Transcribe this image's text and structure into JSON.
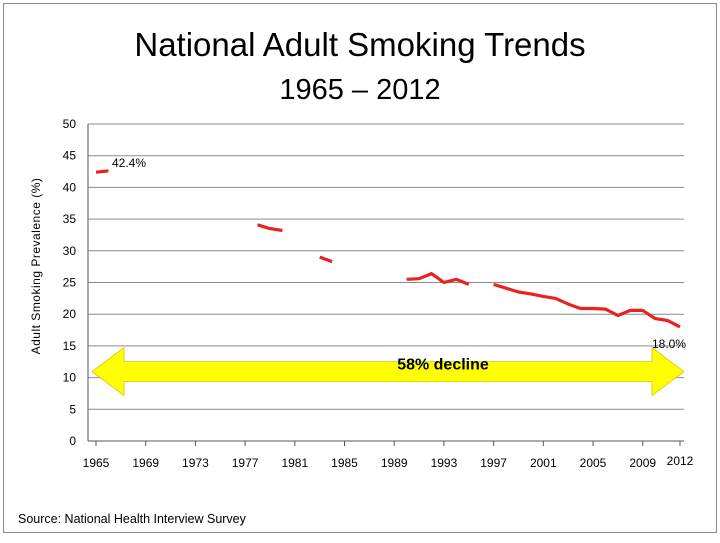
{
  "slide": {
    "title": "National Adult Smoking Trends",
    "subtitle": "1965 – 2012",
    "source": "Source: National Health Interview Survey"
  },
  "chart_data": {
    "type": "line",
    "title": "National Adult Smoking Trends",
    "subtitle": "1965 – 2012",
    "xlabel": "",
    "ylabel": "Adult Smoking Prevalence (%)",
    "ylim": [
      0,
      50
    ],
    "yticks": [
      0,
      5,
      10,
      15,
      20,
      25,
      30,
      35,
      40,
      45,
      50
    ],
    "xlim": [
      1965,
      2012
    ],
    "xticks": [
      "1965",
      "1969",
      "1973",
      "1977",
      "1981",
      "1985",
      "1989",
      "1993",
      "1997",
      "2001",
      "2005",
      "2009",
      "2012"
    ],
    "grid": "horizontal",
    "line_color": "#e8221f",
    "segments": [
      [
        [
          1965,
          42.4
        ],
        [
          1966,
          42.6
        ]
      ],
      [
        [
          1978,
          34.1
        ],
        [
          1979,
          33.5
        ],
        [
          1980,
          33.2
        ]
      ],
      [
        [
          1983,
          29.0
        ],
        [
          1984,
          28.3
        ]
      ],
      [
        [
          1990,
          25.5
        ],
        [
          1991,
          25.6
        ],
        [
          1992,
          26.4
        ],
        [
          1993,
          25.0
        ],
        [
          1994,
          25.5
        ],
        [
          1995,
          24.7
        ]
      ],
      [
        [
          1997,
          24.7
        ],
        [
          1998,
          24.1
        ],
        [
          1999,
          23.5
        ],
        [
          2000,
          23.2
        ],
        [
          2001,
          22.8
        ],
        [
          2002,
          22.5
        ],
        [
          2003,
          21.6
        ],
        [
          2004,
          20.9
        ],
        [
          2005,
          20.9
        ],
        [
          2006,
          20.8
        ],
        [
          2007,
          19.8
        ],
        [
          2008,
          20.6
        ],
        [
          2009,
          20.6
        ],
        [
          2010,
          19.3
        ],
        [
          2011,
          19.0
        ],
        [
          2012,
          18.0
        ]
      ]
    ],
    "annotations": [
      {
        "text": "42.4%",
        "x": 1965,
        "y": 42.4
      },
      {
        "text": "18.0%",
        "x": 2012,
        "y": 18.0
      }
    ],
    "range_arrow": {
      "label": "58% decline",
      "from": 1965,
      "to": 2012,
      "y": 10,
      "color": "#ffff00"
    }
  }
}
